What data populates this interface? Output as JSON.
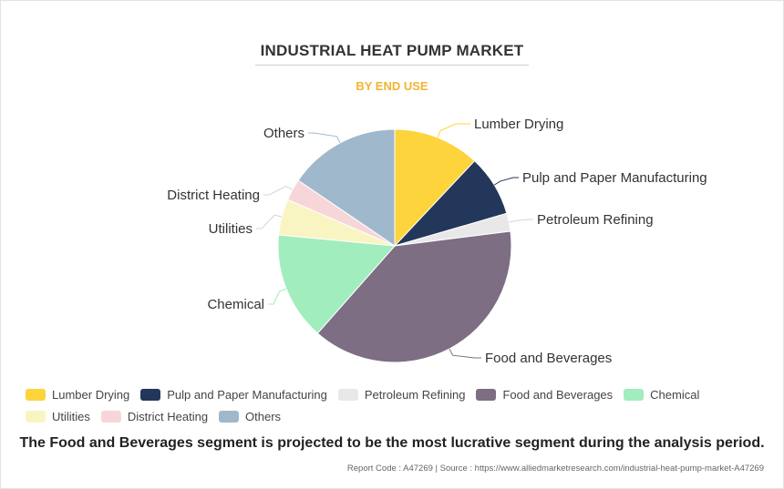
{
  "title": "INDUSTRIAL HEAT PUMP MARKET",
  "subtitle": "BY END USE",
  "footnote": "The Food and Beverages segment is projected to be the most lucrative segment during the analysis period.",
  "source": "Report Code : A47269  |  Source : https://www.alliedmarketresearch.com/industrial-heat-pump-market-A47269",
  "chart_data": {
    "type": "pie",
    "unit": "%",
    "slices": [
      {
        "label": "Lumber Drying",
        "value": 12,
        "color": "#fdd43b"
      },
      {
        "label": "Pulp and Paper Manufacturing",
        "value": 8.5,
        "color": "#23375a"
      },
      {
        "label": "Petroleum Refining",
        "value": 2.5,
        "color": "#e8e8e8"
      },
      {
        "label": "Food and Beverages",
        "value": 38.5,
        "color": "#7d6e83"
      },
      {
        "label": "Chemical",
        "value": 15,
        "color": "#a1edbd"
      },
      {
        "label": "Utilities",
        "value": 5,
        "color": "#f9f5c3"
      },
      {
        "label": "District Heating",
        "value": 3,
        "color": "#f7d6d9"
      },
      {
        "label": "Others",
        "value": 15.5,
        "color": "#9fb8cc"
      }
    ],
    "legend_position": "bottom"
  }
}
